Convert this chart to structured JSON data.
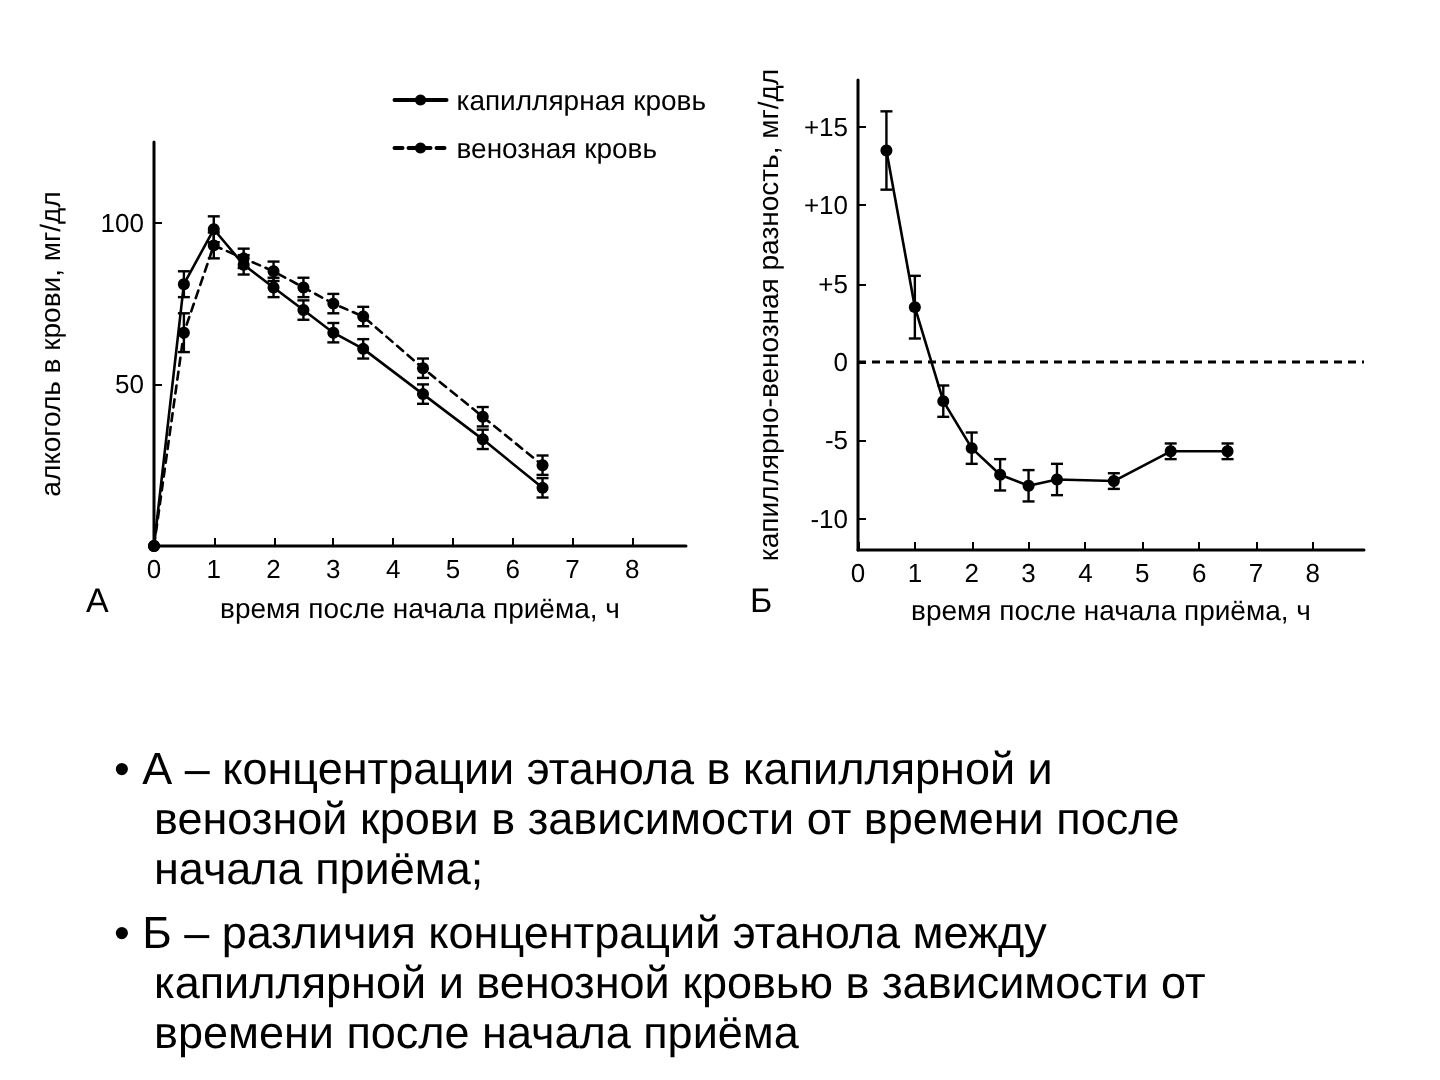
{
  "chart_data": [
    {
      "type": "line",
      "title": "А",
      "xlabel": "время после начала приёма, ч",
      "ylabel": "алкоголь в крови, мг/дл",
      "x": [
        0,
        0.5,
        1,
        1.5,
        2,
        2.5,
        3,
        3.5,
        4.5,
        5.5,
        6.5
      ],
      "series": [
        {
          "name": "капиллярная кровь",
          "color": "#000000",
          "values": [
            0,
            81,
            98,
            87,
            80,
            73,
            66,
            61,
            47,
            33,
            18
          ],
          "errors": [
            null,
            4,
            4,
            3,
            3,
            3,
            3,
            3,
            3,
            3,
            3
          ],
          "line_style": "solid"
        },
        {
          "name": "венозная кровь",
          "color": "#000000",
          "values": [
            0,
            66,
            93,
            89,
            85,
            80,
            75,
            71,
            55,
            40,
            25
          ],
          "errors": [
            null,
            6,
            4,
            3,
            3,
            3,
            3,
            3,
            3,
            3,
            3
          ],
          "line_style": "dashed"
        }
      ],
      "xlim": [
        0,
        8.9
      ],
      "xticks": [
        0,
        1,
        2,
        3,
        4,
        5,
        6,
        7,
        8
      ],
      "ylim": [
        0,
        125
      ],
      "yticks": [
        50,
        100
      ],
      "marker": "circle",
      "legend": "top right",
      "grid": false
    },
    {
      "type": "line",
      "title": "Б",
      "xlabel": "время после начала приёма, ч",
      "ylabel": "капиллярно-венозная разность, мг/дл",
      "x": [
        0.5,
        1,
        1.5,
        2,
        2.5,
        3,
        3.5,
        4.5,
        5.5,
        6.5
      ],
      "series": [
        {
          "color": "#000000",
          "values": [
            13.5,
            3.5,
            -2.5,
            -5.5,
            -7.2,
            -7.9,
            -7.5,
            -7.6,
            -5.7,
            -5.7
          ],
          "errors": [
            2.5,
            2,
            1,
            1,
            1,
            1,
            1,
            0.5,
            0.5,
            0.5
          ],
          "line_style": "solid"
        }
      ],
      "xlim": [
        0,
        8.9
      ],
      "xticks": [
        0,
        1,
        2,
        3,
        4,
        5,
        6,
        7,
        8
      ],
      "ylim": [
        -12,
        18
      ],
      "yticks": [
        -10,
        -5,
        0,
        {
          "value": 5,
          "label": "+5"
        },
        {
          "value": 10,
          "label": "+10"
        },
        {
          "value": 15,
          "label": "+15"
        }
      ],
      "ref_lines": [
        {
          "axis": "y",
          "value": 0,
          "line_style": "dashed",
          "color": "#000000"
        }
      ],
      "marker": "circle",
      "grid": false
    },
    {
      "type": "other",
      "annotations": [
        "• А – концентрации этанола в капиллярной и венозной крови в зависимости от времени после начала приёма;",
        "• Б – различия концентраций этанола между капиллярной и венозной кровью в зависимости от времени после начала приёма"
      ]
    }
  ]
}
